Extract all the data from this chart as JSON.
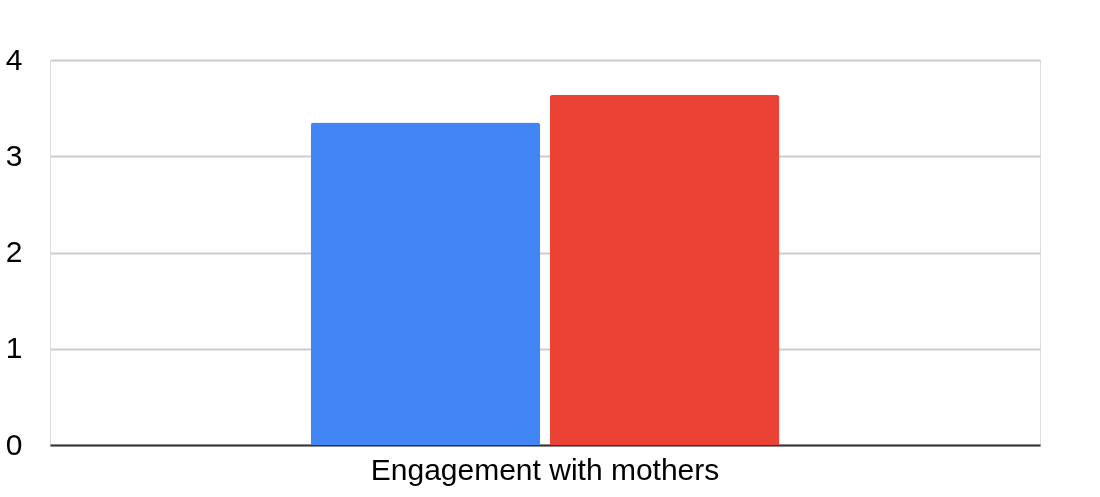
{
  "chart_data": {
    "type": "bar",
    "categories": [
      "Engagement with mothers"
    ],
    "series": [
      {
        "color": "#4285f4",
        "values": [
          3.35
        ]
      },
      {
        "color": "#ea4335",
        "values": [
          3.64
        ]
      }
    ],
    "ylim": [
      0,
      4
    ],
    "yticks": [
      0,
      1,
      2,
      3,
      4
    ],
    "grid": "y",
    "legend": false
  }
}
